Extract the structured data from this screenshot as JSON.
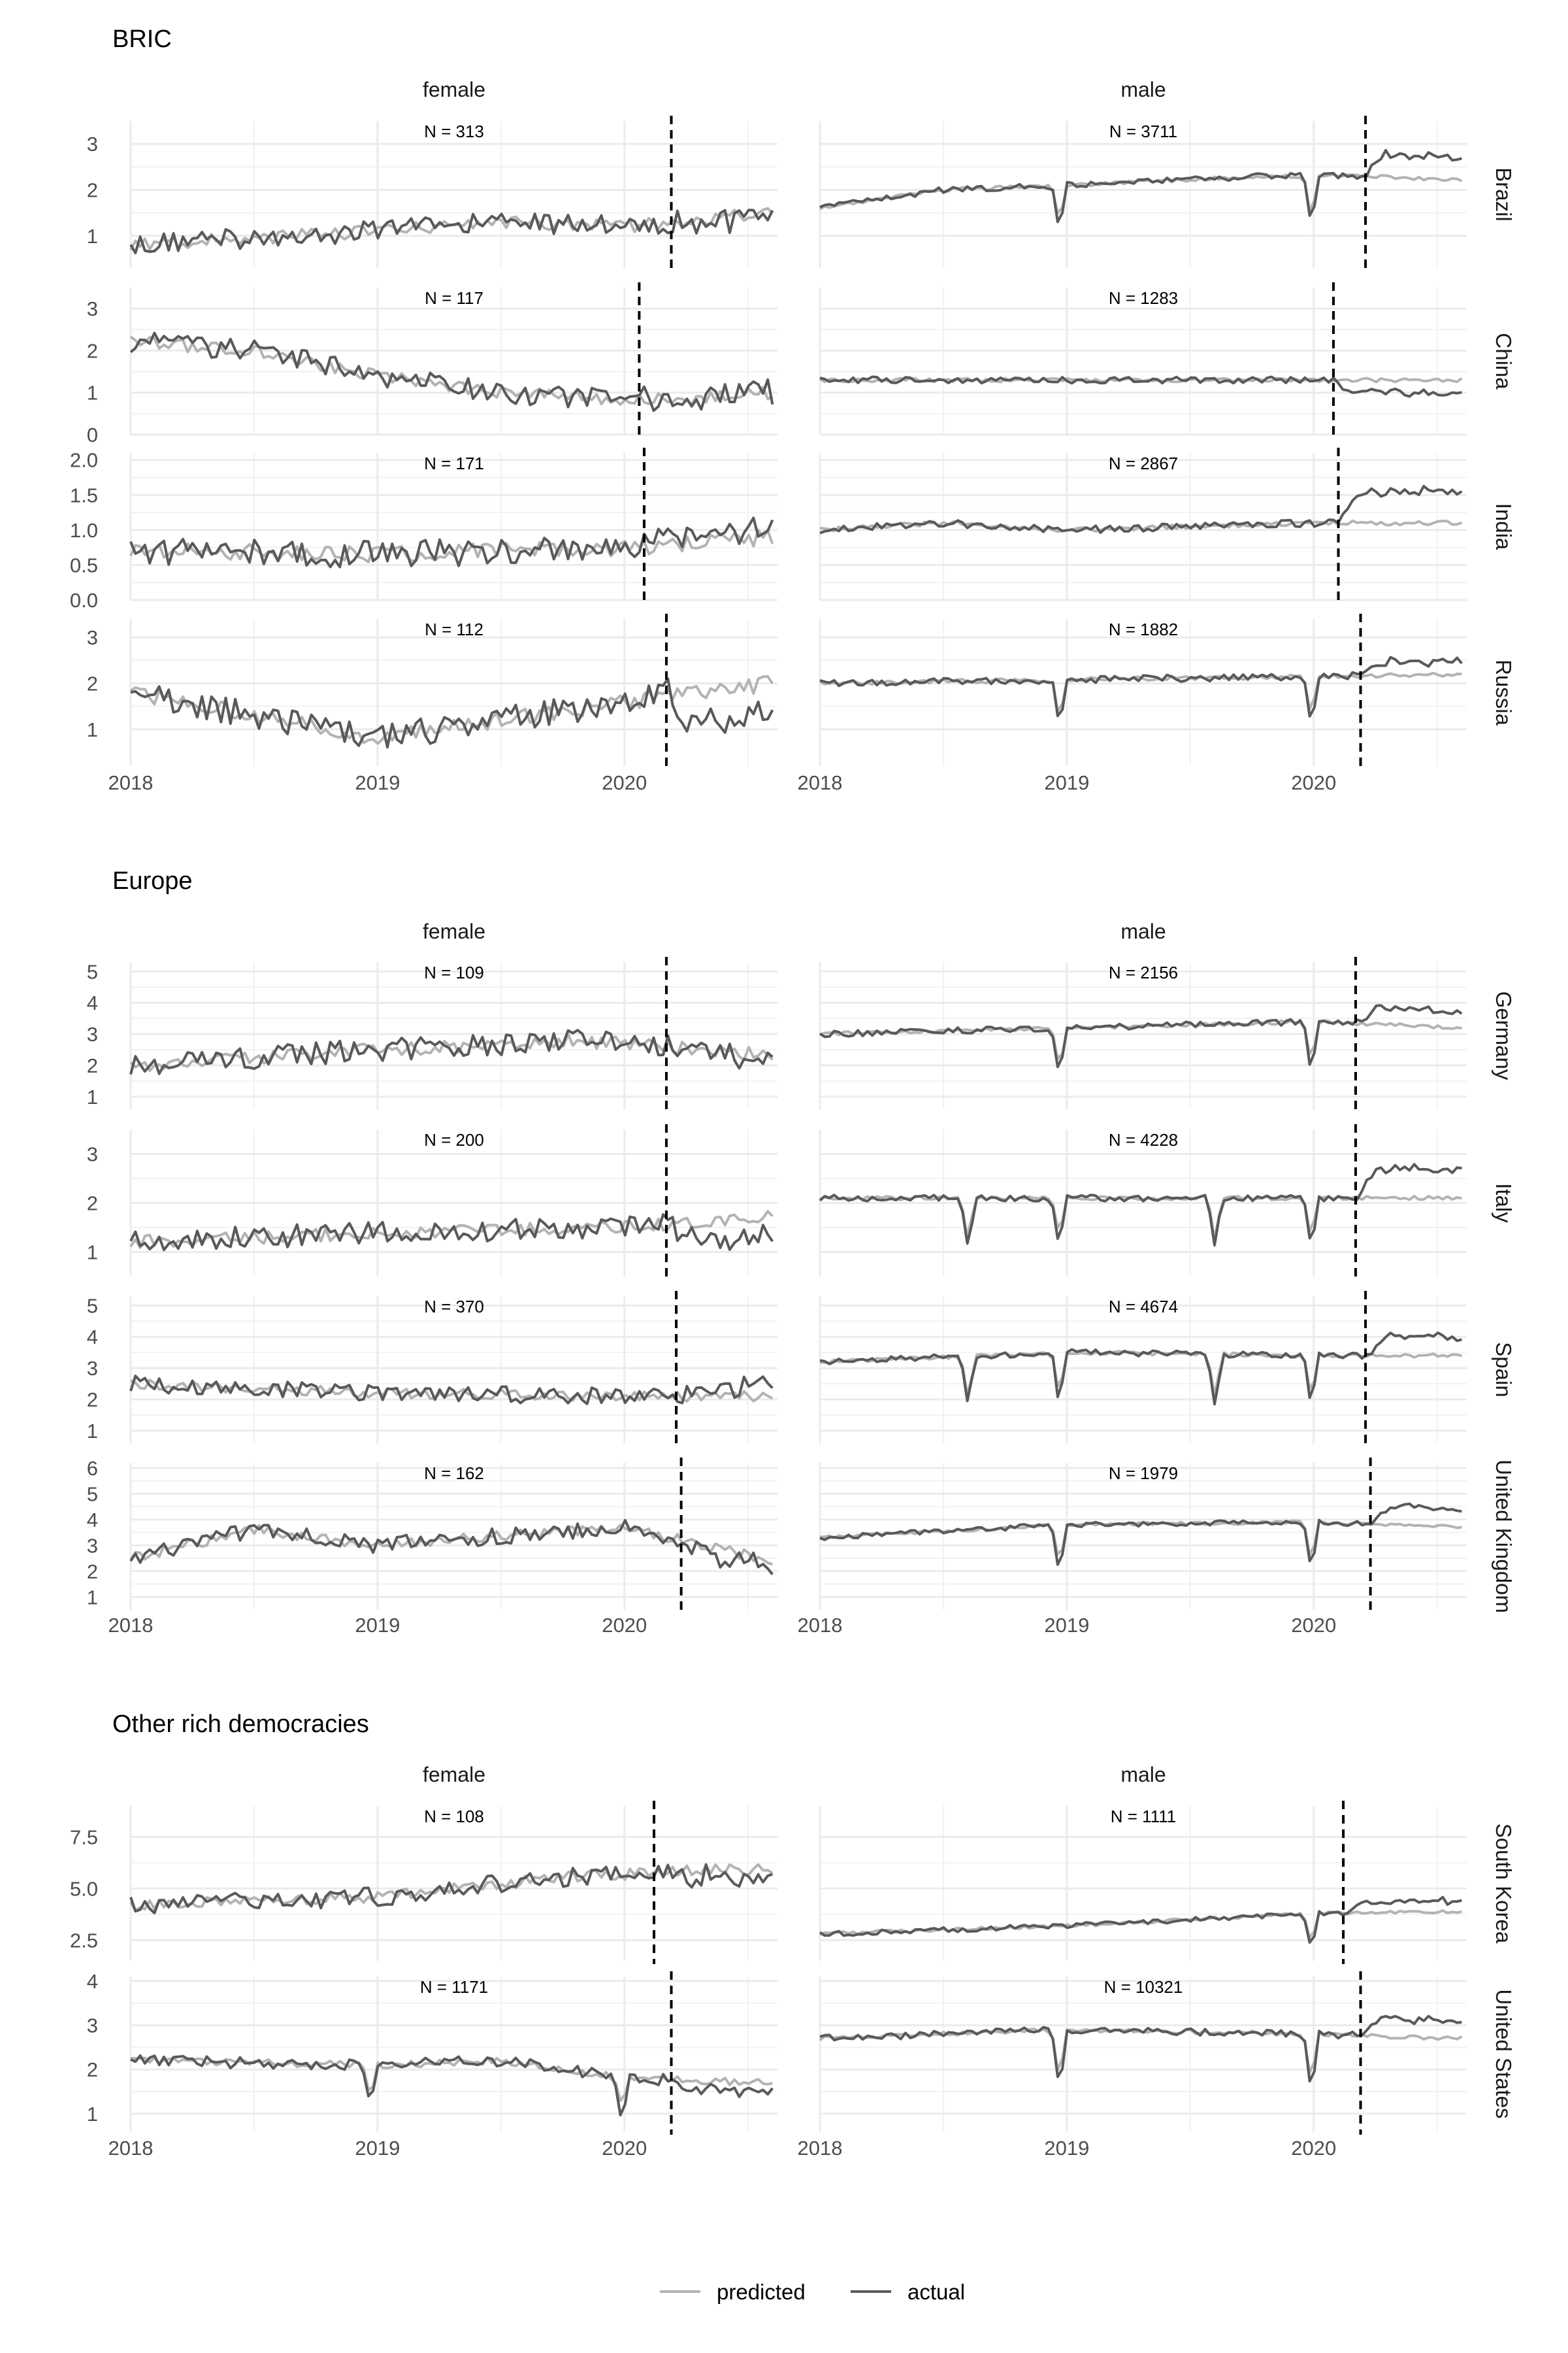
{
  "chart_data": {
    "type": "line",
    "xlim": [
      2018,
      2020.62
    ],
    "x_ticks": [
      "2018",
      "2019",
      "2020"
    ],
    "sexes": [
      "female",
      "male"
    ],
    "legend": {
      "position": "bottom",
      "items": [
        {
          "name": "predicted",
          "color": "#b3b3b3"
        },
        {
          "name": "actual",
          "color": "#595959"
        }
      ]
    },
    "groups": [
      {
        "title": "BRIC",
        "countries": [
          {
            "name": "Brazil",
            "female": {
              "N": "N = 313",
              "ylim": [
                0.3,
                3.5
              ],
              "yticks": [
                "1",
                "2",
                "3"
              ],
              "cutoff": 2020.19
            },
            "male": {
              "N": "N = 3711",
              "ylim": [
                0.3,
                3.5
              ],
              "yticks": [
                "1",
                "2",
                "3"
              ],
              "cutoff": 2020.21
            }
          },
          {
            "name": "China",
            "female": {
              "N": "N = 117",
              "ylim": [
                0,
                3.5
              ],
              "yticks": [
                "0",
                "1",
                "2",
                "3"
              ],
              "cutoff": 2020.06
            },
            "male": {
              "N": "N = 1283",
              "ylim": [
                0,
                3.5
              ],
              "yticks": [
                "0",
                "1",
                "2",
                "3"
              ],
              "cutoff": 2020.08
            }
          },
          {
            "name": "India",
            "female": {
              "N": "N = 171",
              "ylim": [
                0,
                2.1
              ],
              "yticks": [
                "0.0",
                "0.5",
                "1.0",
                "1.5",
                "2.0"
              ],
              "cutoff": 2020.08
            },
            "male": {
              "N": "N = 2867",
              "ylim": [
                0,
                2.1
              ],
              "yticks": [
                "0.0",
                "0.5",
                "1.0",
                "1.5",
                "2.0"
              ],
              "cutoff": 2020.1
            }
          },
          {
            "name": "Russia",
            "female": {
              "N": "N = 112",
              "ylim": [
                0.2,
                3.4
              ],
              "yticks": [
                "1",
                "2",
                "3"
              ],
              "cutoff": 2020.17
            },
            "male": {
              "N": "N = 1882",
              "ylim": [
                0.2,
                3.4
              ],
              "yticks": [
                "1",
                "2",
                "3"
              ],
              "cutoff": 2020.19
            }
          }
        ]
      },
      {
        "title": "Europe",
        "countries": [
          {
            "name": "Germany",
            "female": {
              "N": "N = 109",
              "ylim": [
                0.6,
                5.3
              ],
              "yticks": [
                "1",
                "2",
                "3",
                "4",
                "5"
              ],
              "cutoff": 2020.17
            },
            "male": {
              "N": "N = 2156",
              "ylim": [
                0.6,
                5.3
              ],
              "yticks": [
                "1",
                "2",
                "3",
                "4",
                "5"
              ],
              "cutoff": 2020.17
            }
          },
          {
            "name": "Italy",
            "female": {
              "N": "N = 200",
              "ylim": [
                0.5,
                3.5
              ],
              "yticks": [
                "1",
                "2",
                "3"
              ],
              "cutoff": 2020.17
            },
            "male": {
              "N": "N = 4228",
              "ylim": [
                0.5,
                3.5
              ],
              "yticks": [
                "1",
                "2",
                "3"
              ],
              "cutoff": 2020.17
            }
          },
          {
            "name": "Spain",
            "female": {
              "N": "N = 370",
              "ylim": [
                0.6,
                5.3
              ],
              "yticks": [
                "1",
                "2",
                "3",
                "4",
                "5"
              ],
              "cutoff": 2020.21
            },
            "male": {
              "N": "N = 4674",
              "ylim": [
                0.6,
                5.3
              ],
              "yticks": [
                "1",
                "2",
                "3",
                "4",
                "5"
              ],
              "cutoff": 2020.21
            }
          },
          {
            "name": "United Kingdom",
            "female": {
              "N": "N = 162",
              "ylim": [
                0.5,
                6.2
              ],
              "yticks": [
                "1",
                "2",
                "3",
                "4",
                "5",
                "6"
              ],
              "cutoff": 2020.23
            },
            "male": {
              "N": "N = 1979",
              "ylim": [
                0.5,
                6.2
              ],
              "yticks": [
                "1",
                "2",
                "3",
                "4",
                "5",
                "6"
              ],
              "cutoff": 2020.23
            }
          }
        ]
      },
      {
        "title": "Other rich democracies",
        "countries": [
          {
            "name": "South Korea",
            "female": {
              "N": "N = 108",
              "ylim": [
                1.5,
                9.0
              ],
              "yticks": [
                "2.5",
                "5.0",
                "7.5"
              ],
              "cutoff": 2020.12
            },
            "male": {
              "N": "N = 1111",
              "ylim": [
                1.5,
                9.0
              ],
              "yticks": [
                "2.5",
                "5.0",
                "7.5"
              ],
              "cutoff": 2020.12
            }
          },
          {
            "name": "United States",
            "female": {
              "N": "N = 1171",
              "ylim": [
                0.6,
                4.1
              ],
              "yticks": [
                "1",
                "2",
                "3",
                "4"
              ],
              "cutoff": 2020.19
            },
            "male": {
              "N": "N = 10321",
              "ylim": [
                0.6,
                4.1
              ],
              "yticks": [
                "1",
                "2",
                "3",
                "4"
              ],
              "cutoff": 2020.19
            }
          }
        ]
      }
    ]
  }
}
